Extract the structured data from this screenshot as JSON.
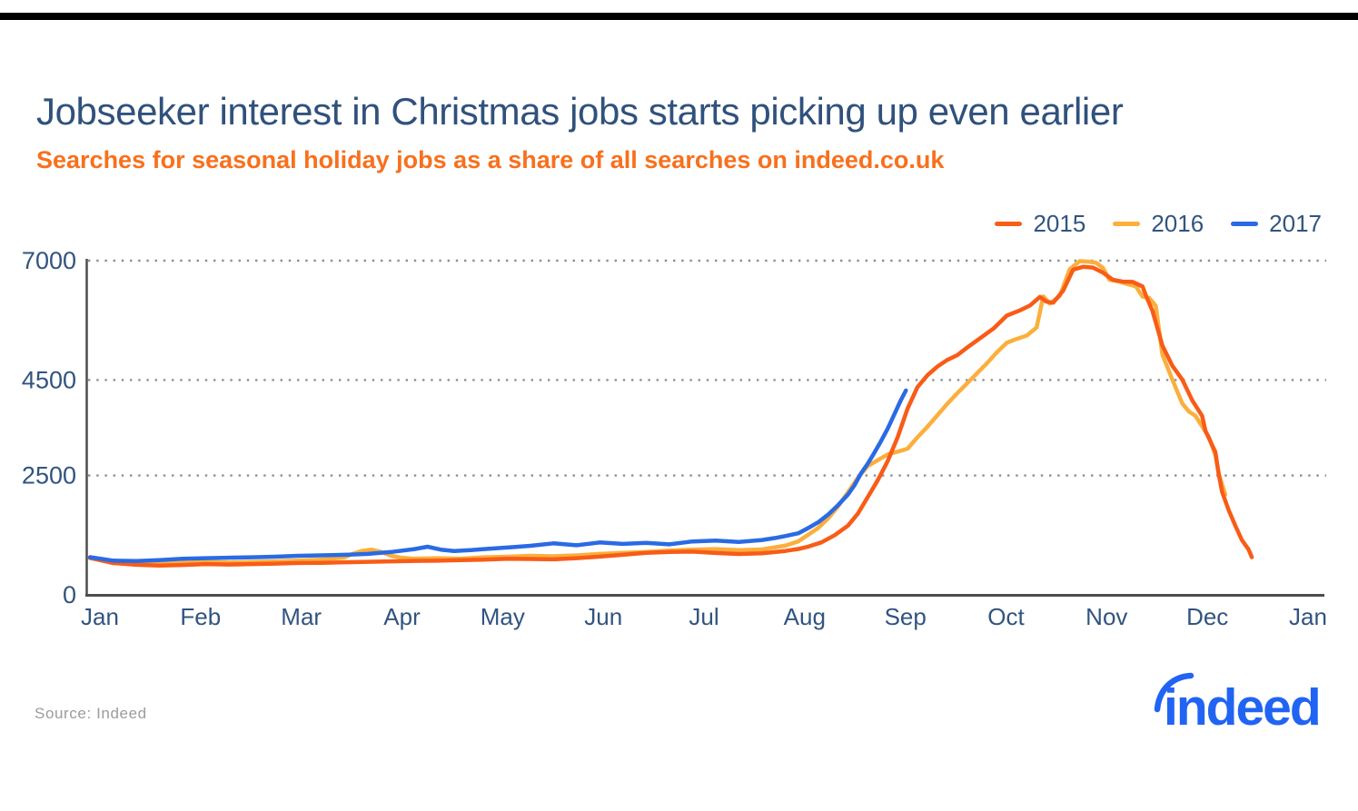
{
  "header": {
    "title": "Jobseeker interest in Christmas jobs starts picking up even earlier",
    "subtitle": "Searches for seasonal holiday jobs as a share of all searches on indeed.co.uk"
  },
  "legend": {
    "position": "top-right",
    "items": [
      {
        "label": "2015",
        "color": "#f85c17"
      },
      {
        "label": "2016",
        "color": "#fbaf3c"
      },
      {
        "label": "2017",
        "color": "#2a6ae4"
      }
    ]
  },
  "chart_data": {
    "type": "line",
    "title": "Jobseeker interest in Christmas jobs starts picking up even earlier",
    "subtitle": "Searches for seasonal holiday jobs as a share of all searches on indeed.co.uk",
    "xlabel": "",
    "ylabel": "",
    "x_unit": "day_of_year",
    "x_labels": [
      "Jan",
      "Feb",
      "Mar",
      "Apr",
      "May",
      "Jun",
      "Jul",
      "Aug",
      "Sep",
      "Oct",
      "Nov",
      "Dec",
      "Jan"
    ],
    "y_ticks": [
      0,
      2500,
      4500,
      7000
    ],
    "ylim": [
      0,
      7000
    ],
    "grid": "dotted-horizontal",
    "legend_position": "top-right",
    "axis_color": "#4d4d4d",
    "grid_color": "#8f8f8f",
    "label_color": "#31547f",
    "series": [
      {
        "name": "2016",
        "color": "#fbaf3c",
        "points": [
          [
            -3,
            770
          ],
          [
            4,
            695
          ],
          [
            11,
            655
          ],
          [
            18,
            645
          ],
          [
            25,
            672
          ],
          [
            32,
            688
          ],
          [
            39,
            678
          ],
          [
            46,
            688
          ],
          [
            53,
            698
          ],
          [
            60,
            718
          ],
          [
            67,
            738
          ],
          [
            74,
            788
          ],
          [
            76,
            848
          ],
          [
            79,
            918
          ],
          [
            82,
            948
          ],
          [
            85,
            898
          ],
          [
            88,
            818
          ],
          [
            91,
            778
          ],
          [
            95,
            758
          ],
          [
            102,
            768
          ],
          [
            109,
            758
          ],
          [
            116,
            788
          ],
          [
            123,
            798
          ],
          [
            130,
            818
          ],
          [
            137,
            808
          ],
          [
            144,
            828
          ],
          [
            151,
            858
          ],
          [
            158,
            878
          ],
          [
            165,
            898
          ],
          [
            172,
            928
          ],
          [
            179,
            948
          ],
          [
            186,
            958
          ],
          [
            193,
            938
          ],
          [
            200,
            952
          ],
          [
            207,
            1030
          ],
          [
            211,
            1120
          ],
          [
            214,
            1260
          ],
          [
            217,
            1400
          ],
          [
            220,
            1600
          ],
          [
            223,
            1850
          ],
          [
            226,
            2150
          ],
          [
            229,
            2450
          ],
          [
            232,
            2700
          ],
          [
            235,
            2820
          ],
          [
            238,
            2940
          ],
          [
            241,
            3000
          ],
          [
            244,
            3060
          ],
          [
            247,
            3300
          ],
          [
            250,
            3520
          ],
          [
            253,
            3760
          ],
          [
            256,
            4000
          ],
          [
            259,
            4220
          ],
          [
            262,
            4430
          ],
          [
            265,
            4640
          ],
          [
            268,
            4850
          ],
          [
            271,
            5080
          ],
          [
            274,
            5280
          ],
          [
            277,
            5360
          ],
          [
            280,
            5430
          ],
          [
            283,
            5600
          ],
          [
            285,
            6250
          ],
          [
            287,
            6100
          ],
          [
            290,
            6260
          ],
          [
            293,
            6820
          ],
          [
            296,
            6990
          ],
          [
            299,
            6975
          ],
          [
            301,
            6955
          ],
          [
            303,
            6850
          ],
          [
            305,
            6600
          ],
          [
            308,
            6560
          ],
          [
            311,
            6500
          ],
          [
            313,
            6460
          ],
          [
            315,
            6245
          ],
          [
            317,
            6220
          ],
          [
            319,
            6050
          ],
          [
            321,
            5030
          ],
          [
            324,
            4510
          ],
          [
            327,
            4010
          ],
          [
            329,
            3840
          ],
          [
            331,
            3750
          ],
          [
            335,
            3310
          ],
          [
            337,
            2930
          ],
          [
            338,
            2540
          ],
          [
            340,
            2100
          ]
        ]
      },
      {
        "name": "2015",
        "color": "#f85c17",
        "points": [
          [
            -3,
            775
          ],
          [
            4,
            665
          ],
          [
            11,
            630
          ],
          [
            18,
            615
          ],
          [
            25,
            625
          ],
          [
            32,
            645
          ],
          [
            39,
            635
          ],
          [
            46,
            645
          ],
          [
            53,
            655
          ],
          [
            60,
            668
          ],
          [
            67,
            672
          ],
          [
            74,
            682
          ],
          [
            81,
            692
          ],
          [
            88,
            702
          ],
          [
            95,
            712
          ],
          [
            102,
            716
          ],
          [
            109,
            726
          ],
          [
            116,
            736
          ],
          [
            123,
            758
          ],
          [
            130,
            752
          ],
          [
            137,
            744
          ],
          [
            144,
            768
          ],
          [
            151,
            800
          ],
          [
            158,
            838
          ],
          [
            165,
            878
          ],
          [
            172,
            898
          ],
          [
            179,
            905
          ],
          [
            186,
            876
          ],
          [
            193,
            856
          ],
          [
            200,
            870
          ],
          [
            207,
            918
          ],
          [
            211,
            960
          ],
          [
            214,
            1010
          ],
          [
            218,
            1100
          ],
          [
            222,
            1250
          ],
          [
            226,
            1450
          ],
          [
            229,
            1700
          ],
          [
            232,
            2050
          ],
          [
            235,
            2400
          ],
          [
            238,
            2800
          ],
          [
            241,
            3300
          ],
          [
            244,
            3900
          ],
          [
            247,
            4350
          ],
          [
            250,
            4600
          ],
          [
            253,
            4780
          ],
          [
            256,
            4920
          ],
          [
            259,
            5020
          ],
          [
            262,
            5180
          ],
          [
            266,
            5380
          ],
          [
            270,
            5580
          ],
          [
            274,
            5850
          ],
          [
            278,
            5960
          ],
          [
            281,
            6060
          ],
          [
            284,
            6240
          ],
          [
            286,
            6140
          ],
          [
            288,
            6120
          ],
          [
            291,
            6370
          ],
          [
            294,
            6810
          ],
          [
            297,
            6870
          ],
          [
            300,
            6855
          ],
          [
            303,
            6750
          ],
          [
            306,
            6600
          ],
          [
            309,
            6560
          ],
          [
            312,
            6555
          ],
          [
            315,
            6460
          ],
          [
            316,
            6270
          ],
          [
            318,
            5950
          ],
          [
            321,
            5220
          ],
          [
            324,
            4800
          ],
          [
            327,
            4510
          ],
          [
            330,
            4075
          ],
          [
            333,
            3750
          ],
          [
            334,
            3440
          ],
          [
            337,
            2990
          ],
          [
            338,
            2540
          ],
          [
            339,
            2160
          ],
          [
            341,
            1780
          ],
          [
            343,
            1455
          ],
          [
            345,
            1150
          ],
          [
            347,
            955
          ],
          [
            348,
            790
          ]
        ]
      },
      {
        "name": "2017",
        "color": "#2a6ae4",
        "points": [
          [
            -3,
            790
          ],
          [
            4,
            718
          ],
          [
            11,
            708
          ],
          [
            18,
            728
          ],
          [
            25,
            758
          ],
          [
            32,
            768
          ],
          [
            39,
            778
          ],
          [
            46,
            788
          ],
          [
            53,
            798
          ],
          [
            60,
            818
          ],
          [
            67,
            828
          ],
          [
            74,
            838
          ],
          [
            81,
            858
          ],
          [
            88,
            898
          ],
          [
            95,
            958
          ],
          [
            99,
            1008
          ],
          [
            103,
            948
          ],
          [
            107,
            918
          ],
          [
            112,
            938
          ],
          [
            116,
            958
          ],
          [
            120,
            978
          ],
          [
            125,
            1000
          ],
          [
            130,
            1028
          ],
          [
            137,
            1078
          ],
          [
            144,
            1038
          ],
          [
            151,
            1098
          ],
          [
            158,
            1068
          ],
          [
            165,
            1088
          ],
          [
            172,
            1058
          ],
          [
            179,
            1118
          ],
          [
            186,
            1138
          ],
          [
            193,
            1108
          ],
          [
            200,
            1148
          ],
          [
            204,
            1190
          ],
          [
            207,
            1230
          ],
          [
            211,
            1290
          ],
          [
            214,
            1400
          ],
          [
            217,
            1520
          ],
          [
            220,
            1680
          ],
          [
            223,
            1880
          ],
          [
            226,
            2100
          ],
          [
            228,
            2300
          ],
          [
            230,
            2550
          ],
          [
            232,
            2750
          ],
          [
            234,
            2980
          ],
          [
            236,
            3220
          ],
          [
            238,
            3480
          ],
          [
            240,
            3780
          ],
          [
            242,
            4080
          ],
          [
            243.5,
            4280
          ]
        ]
      }
    ]
  },
  "source": {
    "label": "Source: Indeed"
  },
  "logo": {
    "text": "indeed",
    "color": "#2164f3"
  }
}
